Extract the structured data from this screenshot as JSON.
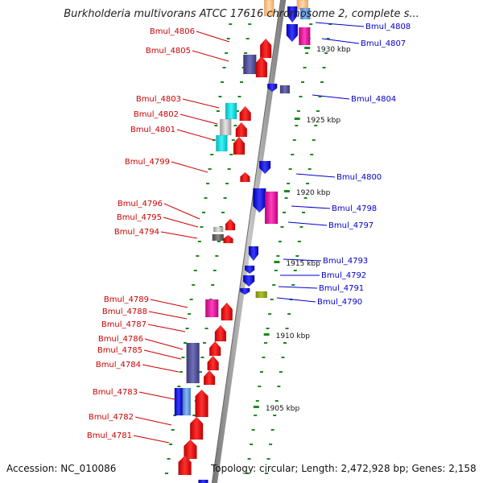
{
  "title": "Burkholderia multivorans ATCC 17616 chromosome 2, complete s...",
  "footer": {
    "accession": "Accession: NC_010086",
    "summary": "Topology: circular; Length: 2,472,928 bp; Genes: 2,158"
  },
  "colors": {
    "left_label": "#cc0000",
    "right_label": "#0000cc",
    "forward_gene": "#ff0000",
    "reverse_gene": "#0000ff",
    "backbone": "#9a9a9a",
    "dots": "#1a8a1a"
  },
  "tick_labels": [
    "1930 kbp",
    "1925 kbp",
    "1920 kbp",
    "1915 kbp",
    "1910 kbp",
    "1905 kbp"
  ],
  "left_genes": [
    "Bmul_4806",
    "Bmul_4805",
    "Bmul_4803",
    "Bmul_4802",
    "Bmul_4801",
    "Bmul_4799",
    "Bmul_4796",
    "Bmul_4795",
    "Bmul_4794",
    "Bmul_4789",
    "Bmul_4788",
    "Bmul_4787",
    "Bmul_4786",
    "Bmul_4785",
    "Bmul_4784",
    "Bmul_4783",
    "Bmul_4782",
    "Bmul_4781"
  ],
  "right_genes": [
    "Bmul_4808",
    "Bmul_4807",
    "Bmul_4804",
    "Bmul_4800",
    "Bmul_4798",
    "Bmul_4797",
    "Bmul_4793",
    "Bmul_4792",
    "Bmul_4791",
    "Bmul_4790"
  ]
}
